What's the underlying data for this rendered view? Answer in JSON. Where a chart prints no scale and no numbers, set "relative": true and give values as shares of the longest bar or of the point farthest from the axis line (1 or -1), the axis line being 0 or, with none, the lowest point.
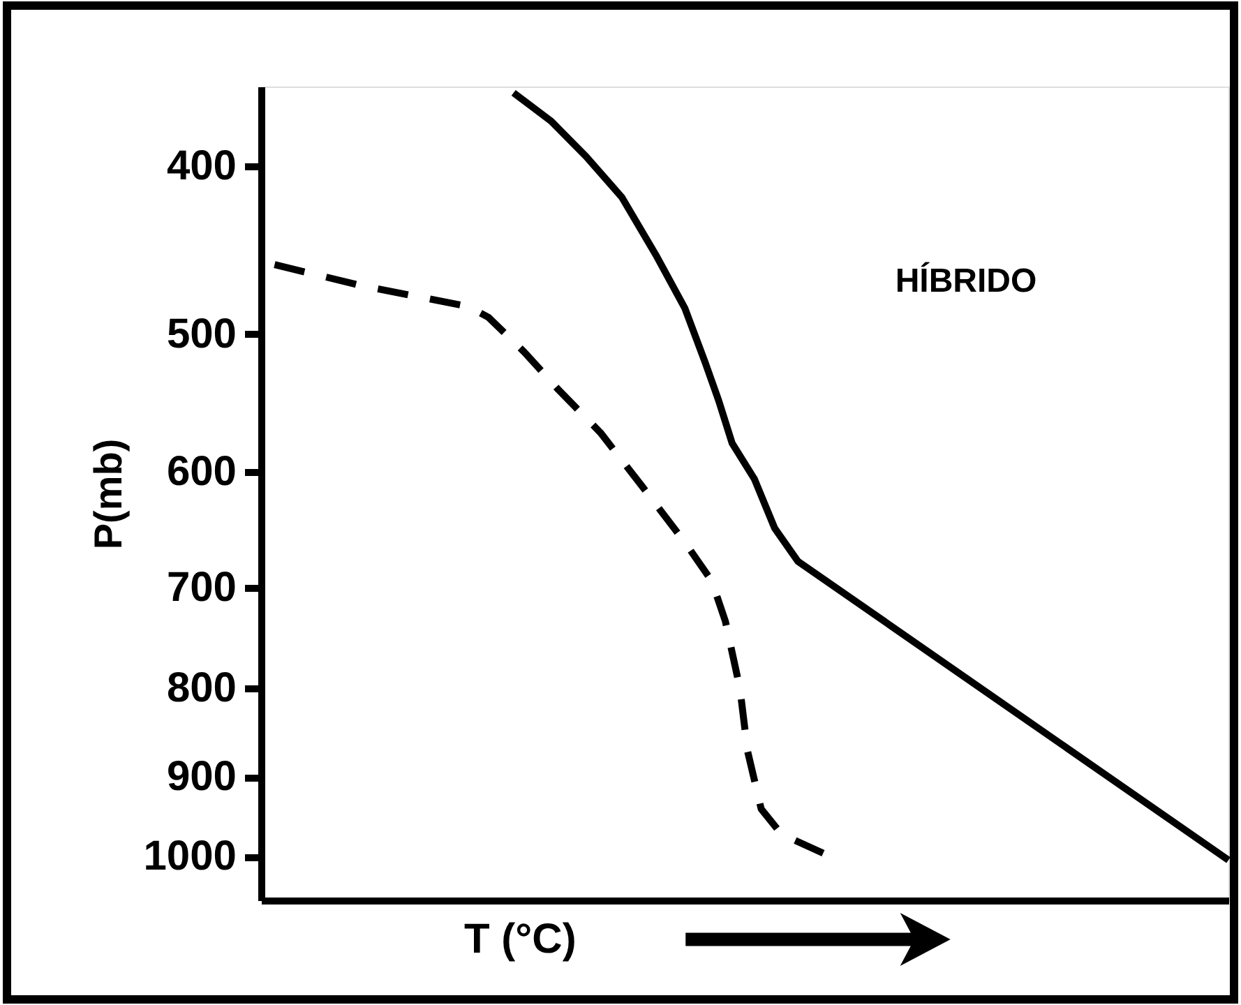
{
  "chart_data": {
    "type": "line",
    "orientation": "horizontal",
    "relative": true,
    "xlabel": "T (°C)",
    "ylabel": "P(mb)",
    "annotations": [
      "HÍBRIDO"
    ],
    "log": "y",
    "ylim": [
      1060,
      360
    ],
    "yticks": [
      400,
      500,
      600,
      700,
      800,
      900,
      1000
    ],
    "tick_labels": "y",
    "series": [
      {
        "color": "#000000",
        "line_style": "solid",
        "x": [
          363,
          377,
          395,
          417,
          450,
          483,
          519,
          546,
          578,
          606,
          647,
          676,
          1005
        ],
        "values": [
          0.261,
          0.3,
          0.336,
          0.373,
          0.408,
          0.438,
          0.459,
          0.473,
          0.487,
          0.51,
          0.531,
          0.555,
          1
        ]
      },
      {
        "color": "#000000",
        "line_style": "dashed",
        "x": [
          456,
          469,
          482,
          489,
          512,
          538,
          570,
          612,
          659,
          694,
          732,
          800,
          870,
          939,
          971,
          998
        ],
        "values": [
          0.014,
          0.105,
          0.214,
          0.235,
          0.272,
          0.307,
          0.351,
          0.394,
          0.438,
          0.466,
          0.48,
          0.495,
          0.503,
          0.517,
          0.538,
          0.585
        ]
      }
    ]
  }
}
